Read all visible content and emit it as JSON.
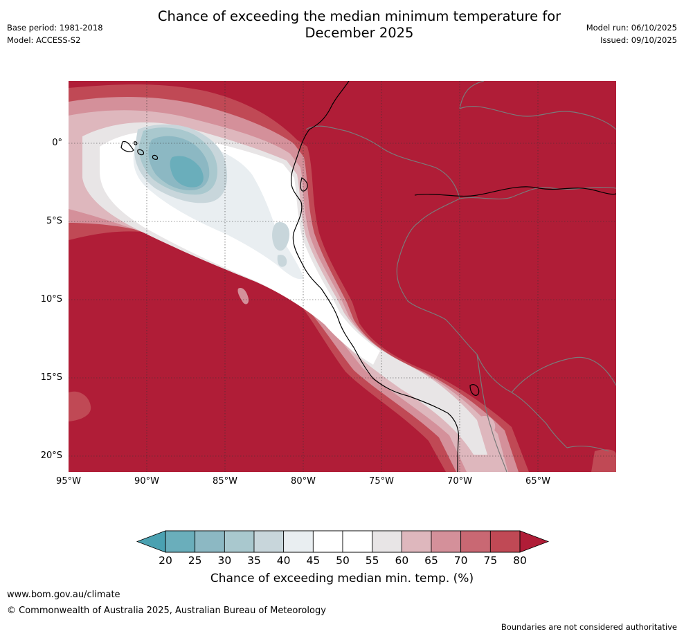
{
  "header": {
    "title_line1": "Chance of exceeding the median minimum temperature for",
    "title_line2": "December 2025",
    "base_period": "Base period: 1981-2018",
    "model": "Model: ACCESS-S2",
    "model_run": "Model run: 06/10/2025",
    "issued": "Issued: 09/10/2025"
  },
  "map": {
    "lat_labels": [
      "0°",
      "5°S",
      "10°S",
      "15°S",
      "20°S"
    ],
    "lon_labels": [
      "95°W",
      "90°W",
      "85°W",
      "80°W",
      "75°W",
      "70°W",
      "65°W"
    ],
    "colors": {
      "ocean_high": "#b01d37",
      "land": "#b01d37",
      "coast": "#000000",
      "border": "#7a7a7a",
      "grid": "#333333"
    }
  },
  "colorbar": {
    "ticks": [
      "20",
      "25",
      "30",
      "35",
      "40",
      "45",
      "50",
      "55",
      "60",
      "65",
      "70",
      "75",
      "80"
    ],
    "colors": [
      "#4aa1b1",
      "#6aaebb",
      "#8cb8c3",
      "#a9c8ce",
      "#c8d6db",
      "#e9eef1",
      "#ffffff",
      "#ffffff",
      "#e8e5e6",
      "#deb7bd",
      "#d4909a",
      "#c96873",
      "#c04955",
      "#b01d37"
    ],
    "label": "Chance of exceeding median min. temp. (%)"
  },
  "footer": {
    "url": "www.bom.gov.au/climate",
    "copyright": "© Commonwealth of Australia 2025, Australian Bureau of Meteorology",
    "disclaimer": "Boundaries are not considered authoritative"
  }
}
